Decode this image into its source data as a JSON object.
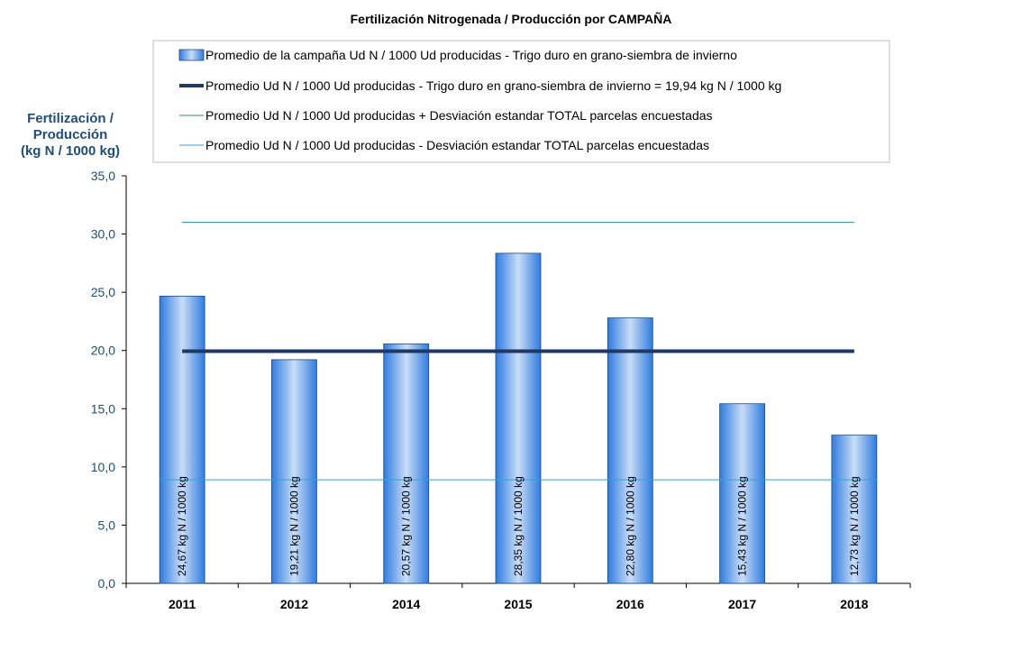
{
  "chart_data": {
    "type": "bar",
    "title": "Fertilización Nitrogenada / Producción por CAMPAÑA",
    "ylabel_lines": [
      "Fertilización /",
      "Producción",
      "(kg N / 1000 kg)"
    ],
    "xlabel": "",
    "categories": [
      "2011",
      "2012",
      "2014",
      "2015",
      "2016",
      "2017",
      "2018"
    ],
    "values": [
      24.67,
      19.21,
      20.57,
      28.35,
      22.8,
      15.43,
      12.73
    ],
    "data_labels": [
      "24,67 kg N / 1000 kg",
      "19,21 kg N / 1000 kg",
      "20,57 kg N / 1000 kg",
      "28,35 kg N / 1000 kg",
      "22,80 kg N / 1000 kg",
      "15,43 kg N / 1000 kg",
      "12,73 kg N / 1000 kg"
    ],
    "ylim": [
      0,
      35
    ],
    "yticks": [
      0,
      5,
      10,
      15,
      20,
      25,
      30,
      35
    ],
    "ytick_labels": [
      "0,0",
      "5,0",
      "10,0",
      "15,0",
      "20,0",
      "25,0",
      "30,0",
      "35,0"
    ],
    "grid": false,
    "legend_placement": "top",
    "reference_lines": {
      "mean": 19.94,
      "mean_plus_std": 31.0,
      "mean_minus_std": 8.9
    },
    "legend": [
      "Promedio de la campaña Ud N / 1000 Ud producidas - Trigo duro en grano-siembra de invierno",
      "Promedio Ud N / 1000 Ud producidas - Trigo duro en grano-siembra de invierno = 19,94 kg N / 1000 kg",
      "Promedio Ud N / 1000 Ud producidas + Desviación estandar TOTAL parcelas encuestadas",
      "Promedio Ud N / 1000 Ud producidas - Desviación estandar TOTAL parcelas encuestadas"
    ],
    "colors": {
      "bar_dark": "#2F7BE0",
      "bar_light": "#C9DDF7",
      "mean_line": "#1F3864",
      "std_upper": "#2E8B8B",
      "std_lower": "#3AA0D0",
      "axis_text": "#1F4E79"
    }
  }
}
